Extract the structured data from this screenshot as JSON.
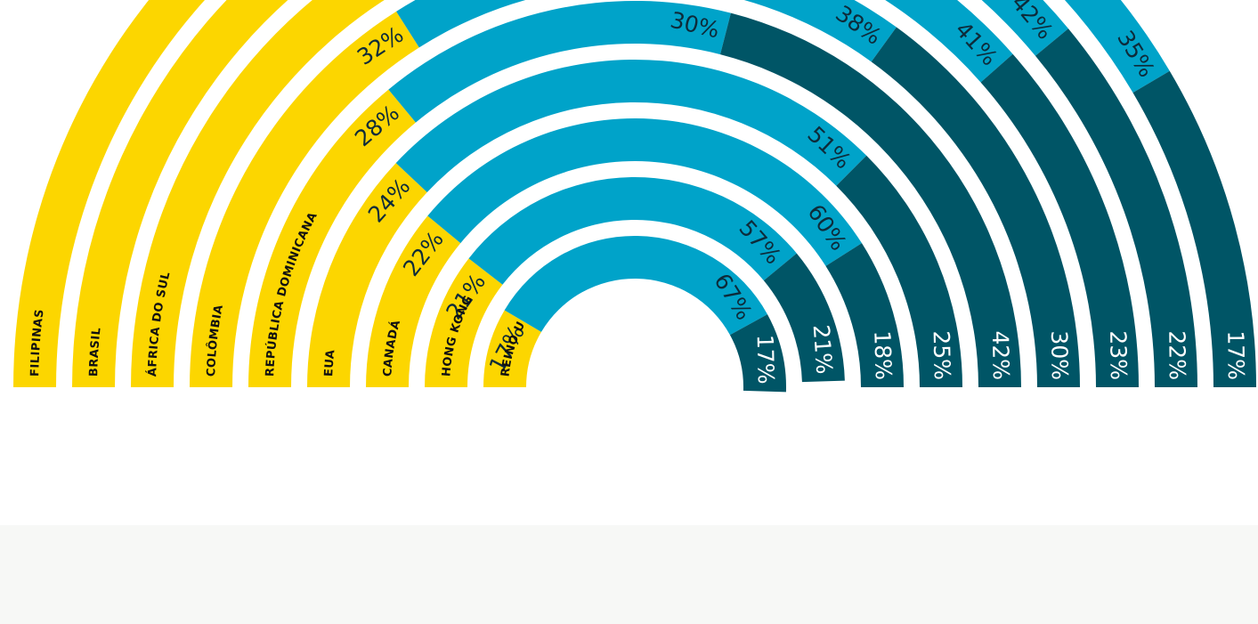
{
  "chart_data": {
    "type": "radial-stacked-bar",
    "categories": [
      "REINO UNIDO",
      "HONG KONG",
      "CANADÁ",
      "EUA",
      "REPÚBLICA DOMINICANA",
      "COLÔMBIA",
      "ÁFRICA DO SUL",
      "BRASIL",
      "FILIPINAS"
    ],
    "ylim": [
      0,
      100
    ],
    "series": [
      {
        "color": "#fcd600",
        "values": [
          17,
          21,
          22,
          24,
          28,
          32,
          36,
          36,
          48
        ],
        "value_labels": [
          "17%",
          "21%",
          "22%",
          "24%",
          "28%",
          "32%",
          null,
          null,
          null
        ]
      },
      {
        "color": "#00a3c9",
        "values": [
          67,
          57,
          60,
          51,
          30,
          38,
          41,
          42,
          35
        ],
        "value_labels": [
          "67%",
          "57%",
          "60%",
          "51%",
          "30%",
          "38%",
          "41%",
          "42%",
          "35%"
        ]
      },
      {
        "color": "#005566",
        "values": [
          17,
          21,
          18,
          25,
          42,
          30,
          23,
          22,
          17
        ],
        "value_labels": [
          "17%",
          "21%",
          "18%",
          "25%",
          "42%",
          "30%",
          "23%",
          "22%",
          "17%"
        ]
      }
    ]
  }
}
